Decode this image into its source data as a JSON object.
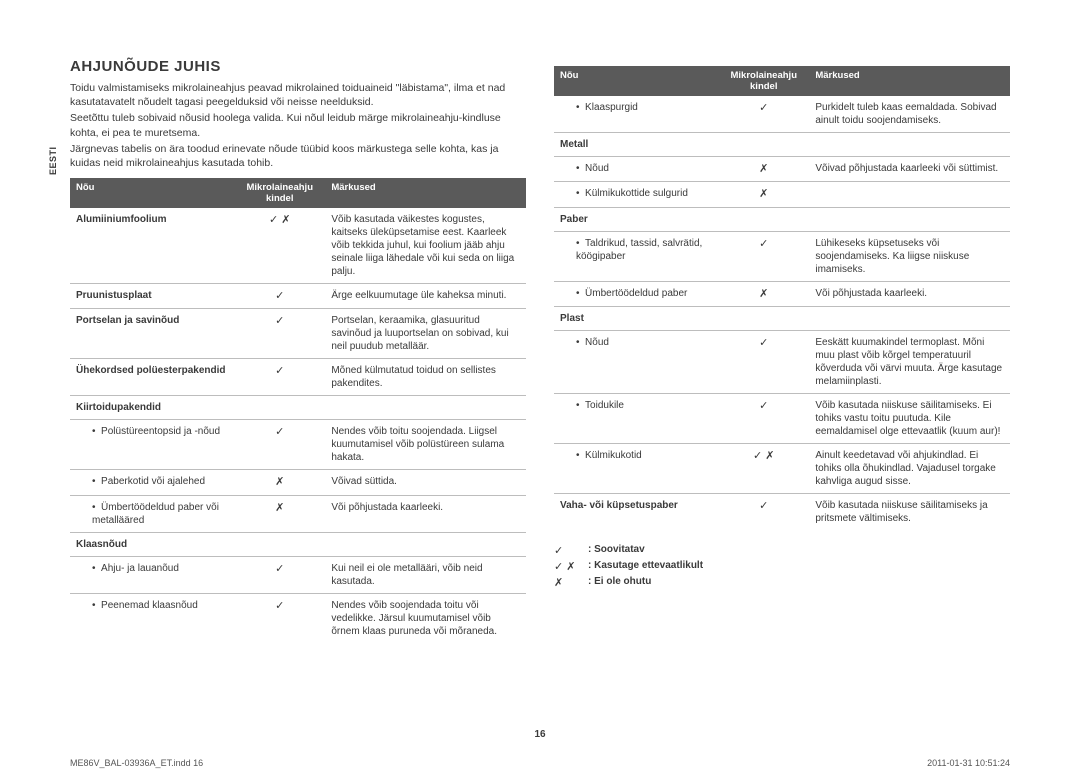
{
  "sidebar": "EESTI",
  "heading": "AHJUNÕUDE JUHIS",
  "intro": [
    "Toidu valmistamiseks mikrolaineahjus peavad mikrolained toiduaineid \"läbistama\", ilma et nad kasutatavatelt nõudelt tagasi peegelduksid või neisse neelduksid.",
    "Seetõttu tuleb sobivaid nõusid hoolega valida. Kui nõul leidub märge mikrolaineahju-kindluse kohta, ei pea te muretsema.",
    "Järgnevas tabelis on ära toodud erinevate nõude tüübid koos märkustega selle kohta, kas ja kuidas neid mikrolaineahjus kasutada tohib."
  ],
  "headers": {
    "c1": "Nõu",
    "c2": "Mikrolaineahju kindel",
    "c3": "Märkused"
  },
  "table1": [
    {
      "c1": "Alumiiniumfoolium",
      "c2": "✓ ✗",
      "c3": "Võib kasutada väikestes kogustes, kaitseks üleküpsetamise eest. Kaarleek võib tekkida juhul, kui foolium jääb ahju seinale liiga lähedale või kui seda on liiga palju.",
      "bold": true
    },
    {
      "c1": "Pruunistusplaat",
      "c2": "✓",
      "c3": "Ärge eelkuumutage üle kaheksa minuti.",
      "bold": true
    },
    {
      "c1": "Portselan ja savinõud",
      "c2": "✓",
      "c3": "Portselan, keraamika, glasuuritud savinõud ja luuportselan on sobivad, kui neil puudub metalläär.",
      "bold": true
    },
    {
      "c1": "Ühekordsed polüesterpakendid",
      "c2": "✓",
      "c3": "Mõned külmutatud toidud on sellistes pakendites.",
      "bold": true
    },
    {
      "c1": "Kiirtoidupakendid",
      "c2": "",
      "c3": "",
      "bold": true,
      "section": true
    },
    {
      "c1": "Polüstüreentopsid ja -nõud",
      "c2": "✓",
      "c3": "Nendes võib toitu soojendada. Liigsel kuumutamisel võib polüstüreen sulama hakata.",
      "bullet": true
    },
    {
      "c1": "Paberkotid või ajalehed",
      "c2": "✗",
      "c3": "Võivad süttida.",
      "bullet": true
    },
    {
      "c1": "Ümbertöödeldud paber või metalläärеd",
      "c2": "✗",
      "c3": "Või põhjustada kaarleeki.",
      "bullet": true
    },
    {
      "c1": "Klaasnõud",
      "c2": "",
      "c3": "",
      "bold": true,
      "section": true
    },
    {
      "c1": "Ahju- ja lauanõud",
      "c2": "✓",
      "c3": "Kui neil ei ole metallääri, võib neid kasutada.",
      "bullet": true
    },
    {
      "c1": "Peenemad klaasnõud",
      "c2": "✓",
      "c3": "Nendes võib soojendada toitu või vedelikke. Järsul kuumutamisel võib õrnem klaas puruneda või mõraneda.",
      "bullet": true,
      "last": true
    }
  ],
  "table2": [
    {
      "c1": "Klaaspurgid",
      "c2": "✓",
      "c3": "Purkidelt tuleb kaas eemaldada. Sobivad ainult toidu soojendamiseks.",
      "bullet": true
    },
    {
      "c1": "Metall",
      "c2": "",
      "c3": "",
      "bold": true,
      "section": true
    },
    {
      "c1": "Nõud",
      "c2": "✗",
      "c3": "Võivad põhjustada kaarleeki või süttimist.",
      "bullet": true
    },
    {
      "c1": "Külmikukottide sulgurid",
      "c2": "✗",
      "c3": "",
      "bullet": true
    },
    {
      "c1": "Paber",
      "c2": "",
      "c3": "",
      "bold": true,
      "section": true
    },
    {
      "c1": "Taldrikud, tassid, salvrätid, köögipaber",
      "c2": "✓",
      "c3": "Lühikeseks küpsetuseks või soojendamiseks. Ka liigse niiskuse imamiseks.",
      "bullet": true
    },
    {
      "c1": "Ümbertöödeldud paber",
      "c2": "✗",
      "c3": "Või põhjustada kaarleeki.",
      "bullet": true
    },
    {
      "c1": "Plast",
      "c2": "",
      "c3": "",
      "bold": true,
      "section": true
    },
    {
      "c1": "Nõud",
      "c2": "✓",
      "c3": "Eeskätt kuumakindel termoplast. Mõni muu plast võib kõrgel temperatuuril kõverduda või värvi muuta. Ärge kasutage melamiinplasti.",
      "bullet": true
    },
    {
      "c1": "Toidukile",
      "c2": "✓",
      "c3": "Võib kasutada niiskuse säilitamiseks. Ei tohiks vastu toitu puutuda. Kile eemaldamisel olge ettevaatlik (kuum aur)!",
      "bullet": true
    },
    {
      "c1": "Külmikukotid",
      "c2": "✓ ✗",
      "c3": "Ainult keedetavad või ahjukindlad. Ei tohiks olla õhukindlad. Vajadusel torgake kahvliga augud sisse.",
      "bullet": true
    },
    {
      "c1": "Vaha- või küpsetuspaber",
      "c2": "✓",
      "c3": "Võib kasutada niiskuse säilitamiseks ja pritsmete vältimiseks.",
      "bold": true,
      "last": true
    }
  ],
  "legend": [
    {
      "sym": "✓",
      "text": ": Soovitatav"
    },
    {
      "sym": "✓ ✗",
      "text": ": Kasutage ettevaatlikult"
    },
    {
      "sym": "✗",
      "text": ": Ei ole ohutu"
    }
  ],
  "pageNum": "16",
  "footer": {
    "left": "ME86V_BAL-03936A_ET.indd   16",
    "right": "2011-01-31     10:51:24"
  }
}
